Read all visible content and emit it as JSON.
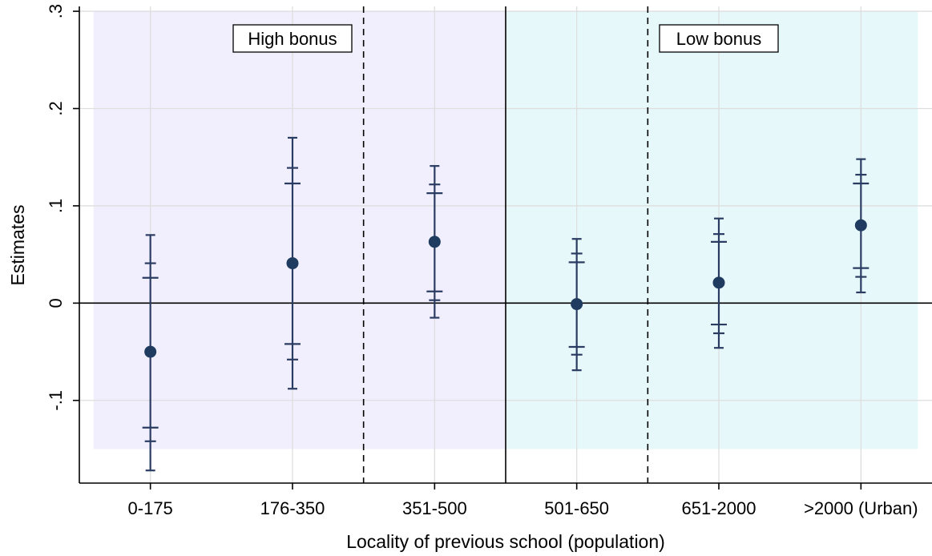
{
  "chart_data": {
    "type": "scatter",
    "subtype": "coefficient plot with confidence intervals",
    "xlabel": "Locality of previous school (population)",
    "ylabel": "Estimates",
    "categories": [
      "0-175",
      "176-350",
      "351-500",
      "501-650",
      "651-2000",
      ">2000 (Urban)"
    ],
    "points": [
      {
        "category": "0-175",
        "estimate": -0.05,
        "ci90": [
          -0.128,
          0.026
        ],
        "ci95": [
          -0.142,
          0.041
        ],
        "ci99": [
          -0.172,
          0.07
        ]
      },
      {
        "category": "176-350",
        "estimate": 0.041,
        "ci90": [
          -0.042,
          0.123
        ],
        "ci95": [
          -0.058,
          0.139
        ],
        "ci99": [
          -0.088,
          0.17
        ]
      },
      {
        "category": "351-500",
        "estimate": 0.063,
        "ci90": [
          0.012,
          0.113
        ],
        "ci95": [
          0.003,
          0.122
        ],
        "ci99": [
          -0.015,
          0.141
        ]
      },
      {
        "category": "501-650",
        "estimate": -0.001,
        "ci90": [
          -0.045,
          0.042
        ],
        "ci95": [
          -0.053,
          0.051
        ],
        "ci99": [
          -0.069,
          0.066
        ]
      },
      {
        "category": "651-2000",
        "estimate": 0.021,
        "ci90": [
          -0.022,
          0.063
        ],
        "ci95": [
          -0.031,
          0.071
        ],
        "ci99": [
          -0.046,
          0.087
        ]
      },
      {
        "category": ">2000 (Urban)",
        "estimate": 0.08,
        "ci90": [
          0.036,
          0.123
        ],
        "ci95": [
          0.027,
          0.132
        ],
        "ci99": [
          0.011,
          0.148
        ]
      }
    ],
    "yticks": [
      -0.1,
      0,
      0.1,
      0.2,
      0.3
    ],
    "ytick_labels": [
      "-.1",
      "0",
      ".1",
      ".2",
      ".3"
    ],
    "ylim": [
      -0.185,
      0.305
    ],
    "xlim": [
      0,
      6
    ],
    "grid": true,
    "reference_line_y": 0,
    "regions": [
      {
        "label": "High bonus",
        "x_from": 0.1,
        "x_to": 3,
        "y_from": -0.15,
        "y_to": 0.3,
        "color": "#f1effd"
      },
      {
        "label": "Low bonus",
        "x_from": 3,
        "x_to": 5.9,
        "y_from": -0.15,
        "y_to": 0.3,
        "color": "#e6f8fa"
      }
    ],
    "dashed_vlines_x": [
      2,
      4
    ],
    "solid_vline_x": 3,
    "colors": {
      "marker": "#1f3b5f",
      "ci": "#2b3c63",
      "grid": "#dedede"
    }
  }
}
